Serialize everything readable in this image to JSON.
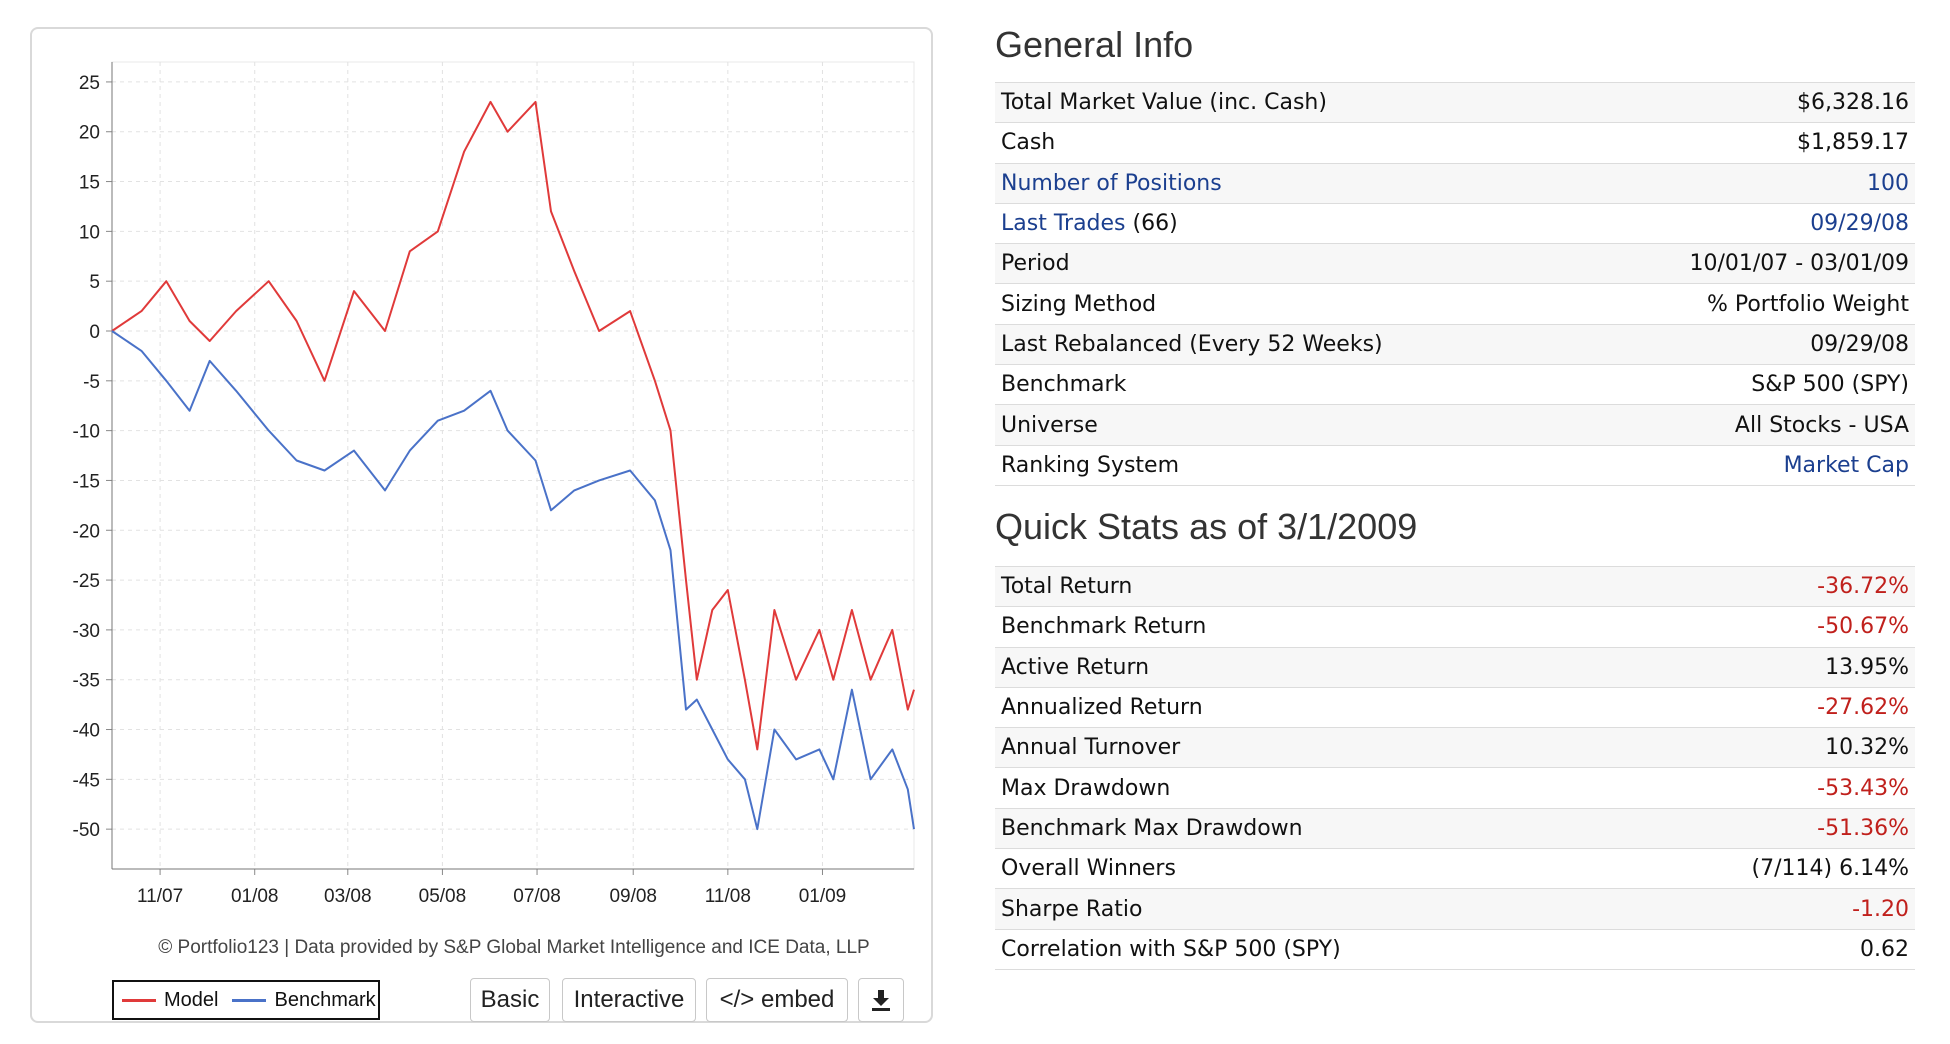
{
  "chart_data": {
    "type": "line",
    "ylim": [
      -54,
      27
    ],
    "xlim": [
      "2007-10-01",
      "2009-03-01"
    ],
    "yticks": [
      25,
      20,
      15,
      10,
      5,
      0,
      -5,
      -10,
      -15,
      -20,
      -25,
      -30,
      -35,
      -40,
      -45,
      -50
    ],
    "xticks": [
      {
        "label": "11/07",
        "date": "2007-11-01"
      },
      {
        "label": "01/08",
        "date": "2008-01-01"
      },
      {
        "label": "03/08",
        "date": "2008-03-01"
      },
      {
        "label": "05/08",
        "date": "2008-05-01"
      },
      {
        "label": "07/08",
        "date": "2008-07-01"
      },
      {
        "label": "09/08",
        "date": "2008-09-01"
      },
      {
        "label": "11/08",
        "date": "2008-11-01"
      },
      {
        "label": "01/09",
        "date": "2009-01-01"
      }
    ],
    "grid": true,
    "legend_placement": "bottom-left",
    "series": [
      {
        "name": "Model",
        "color": "#e03a3a",
        "x": [
          "2007-10-01",
          "2007-10-20",
          "2007-11-05",
          "2007-11-20",
          "2007-12-03",
          "2007-12-20",
          "2008-01-10",
          "2008-01-28",
          "2008-02-15",
          "2008-03-05",
          "2008-03-25",
          "2008-04-10",
          "2008-04-28",
          "2008-05-15",
          "2008-06-01",
          "2008-06-12",
          "2008-06-30",
          "2008-07-10",
          "2008-07-25",
          "2008-08-10",
          "2008-08-30",
          "2008-09-15",
          "2008-09-25",
          "2008-10-05",
          "2008-10-12",
          "2008-10-22",
          "2008-11-01",
          "2008-11-12",
          "2008-11-20",
          "2008-12-01",
          "2008-12-15",
          "2008-12-30",
          "2009-01-08",
          "2009-01-20",
          "2009-02-01",
          "2009-02-15",
          "2009-02-25",
          "2009-03-01"
        ],
        "values": [
          0,
          2,
          5,
          1,
          -1,
          2,
          5,
          1,
          -5,
          4,
          0,
          8,
          10,
          18,
          23,
          20,
          23,
          12,
          6,
          0,
          2,
          -5,
          -10,
          -25,
          -35,
          -28,
          -26,
          -35,
          -42,
          -28,
          -35,
          -30,
          -35,
          -28,
          -35,
          -30,
          -38,
          -36
        ]
      },
      {
        "name": "Benchmark",
        "color": "#4a72c8",
        "x": [
          "2007-10-01",
          "2007-10-20",
          "2007-11-05",
          "2007-11-20",
          "2007-12-03",
          "2007-12-20",
          "2008-01-10",
          "2008-01-28",
          "2008-02-15",
          "2008-03-05",
          "2008-03-25",
          "2008-04-10",
          "2008-04-28",
          "2008-05-15",
          "2008-06-01",
          "2008-06-12",
          "2008-06-30",
          "2008-07-10",
          "2008-07-25",
          "2008-08-10",
          "2008-08-30",
          "2008-09-15",
          "2008-09-25",
          "2008-10-05",
          "2008-10-12",
          "2008-10-22",
          "2008-11-01",
          "2008-11-12",
          "2008-11-20",
          "2008-12-01",
          "2008-12-15",
          "2008-12-30",
          "2009-01-08",
          "2009-01-20",
          "2009-02-01",
          "2009-02-15",
          "2009-02-25",
          "2009-03-01"
        ],
        "values": [
          0,
          -2,
          -5,
          -8,
          -3,
          -6,
          -10,
          -13,
          -14,
          -12,
          -16,
          -12,
          -9,
          -8,
          -6,
          -10,
          -13,
          -18,
          -16,
          -15,
          -14,
          -17,
          -22,
          -38,
          -37,
          -40,
          -43,
          -45,
          -50,
          -40,
          -43,
          -42,
          -45,
          -36,
          -45,
          -42,
          -46,
          -50
        ]
      }
    ]
  },
  "chart_credit": "© Portfolio123 | Data provided by S&P Global Market Intelligence and ICE Data, LLP",
  "legend": {
    "model": "Model",
    "benchmark": "Benchmark"
  },
  "buttons": {
    "basic": "Basic",
    "interactive": "Interactive",
    "embed": "</> embed",
    "download_icon": "download-icon"
  },
  "general_info": {
    "title": "General Info",
    "rows": [
      {
        "label": "Total Market Value (inc. Cash)",
        "value": "$6,328.16"
      },
      {
        "label": "Cash",
        "value": "$1,859.17"
      },
      {
        "label": "Number of Positions",
        "value": "100"
      },
      {
        "label": "Last Trades",
        "label_suffix": " (66)",
        "value": "09/29/08"
      },
      {
        "label": "Period",
        "value": "10/01/07 - 03/01/09"
      },
      {
        "label": "Sizing Method",
        "value": "% Portfolio Weight"
      },
      {
        "label": "Last Rebalanced (Every 52 Weeks)",
        "value": "09/29/08"
      },
      {
        "label": "Benchmark",
        "value": "S&P 500 (SPY)"
      },
      {
        "label": "Universe",
        "value": "All Stocks - USA"
      },
      {
        "label": "Ranking System",
        "value": "Market Cap"
      }
    ]
  },
  "quick_stats": {
    "title": "Quick Stats as of 3/1/2009",
    "rows": [
      {
        "label": "Total Return",
        "value": "-36.72%"
      },
      {
        "label": "Benchmark Return",
        "value": "-50.67%"
      },
      {
        "label": "Active Return",
        "value": "13.95%"
      },
      {
        "label": "Annualized Return",
        "value": "-27.62%"
      },
      {
        "label": "Annual Turnover",
        "value": "10.32%"
      },
      {
        "label": "Max Drawdown",
        "value": "-53.43%"
      },
      {
        "label": "Benchmark Max Drawdown",
        "value": "-51.36%"
      },
      {
        "label": "Overall Winners",
        "value": "(7/114) 6.14%"
      },
      {
        "label": "Sharpe Ratio",
        "value": "-1.20"
      },
      {
        "label": "Correlation with S&P 500 (SPY)",
        "value": "0.62"
      }
    ]
  },
  "colors": {
    "link": "#1b3f8f",
    "negative": "#c0201c",
    "model": "#e03a3a",
    "benchmark": "#4a72c8"
  }
}
